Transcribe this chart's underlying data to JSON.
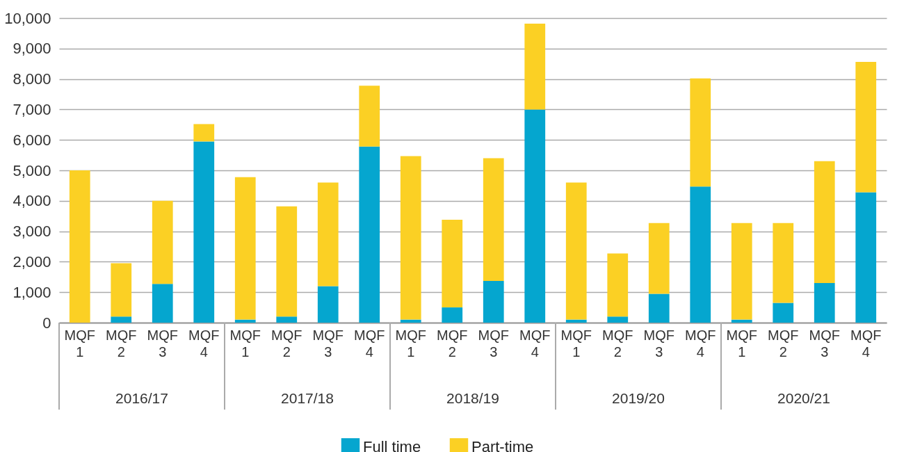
{
  "chart_data": {
    "type": "bar",
    "stacked": true,
    "categories": [
      "MQF 1",
      "MQF 2",
      "MQF 3",
      "MQF 4",
      "MQF 1",
      "MQF 2",
      "MQF 3",
      "MQF 4",
      "MQF 1",
      "MQF 2",
      "MQF 3",
      "MQF 4",
      "MQF 1",
      "MQF 2",
      "MQF 3",
      "MQF 4",
      "MQF 1",
      "MQF 2",
      "MQF 3",
      "MQF 4"
    ],
    "series": [
      {
        "name": "Full time",
        "color": "#05a6cf",
        "values": [
          0,
          200,
          1270,
          5950,
          100,
          200,
          1200,
          5780,
          100,
          500,
          1370,
          7000,
          100,
          200,
          950,
          4470,
          100,
          650,
          1300,
          4280
        ]
      },
      {
        "name": "Part-time",
        "color": "#fbd024",
        "values": [
          5000,
          1750,
          2730,
          570,
          4680,
          3620,
          3400,
          2000,
          5370,
          2880,
          4030,
          2820,
          4500,
          2070,
          2320,
          3550,
          3170,
          2620,
          4000,
          4280
        ]
      }
    ],
    "annotations": [
      "2016/17",
      "2017/18",
      "2018/19",
      "2019/20",
      "2020/21"
    ],
    "ylim": [
      0,
      10000
    ],
    "yticks": [
      0,
      {
        "value": 1000,
        "label": "1,000"
      },
      {
        "value": 2000,
        "label": "2,000"
      },
      {
        "value": 3000,
        "label": "3,000"
      },
      {
        "value": 4000,
        "label": "4,000"
      },
      {
        "value": 5000,
        "label": "5,000"
      },
      {
        "value": 6000,
        "label": "6,000"
      },
      {
        "value": 7000,
        "label": "7,000"
      },
      {
        "value": 8000,
        "label": "8,000"
      },
      {
        "value": 9000,
        "label": "9,000"
      },
      {
        "value": 10000,
        "label": "10,000"
      }
    ],
    "grid": "y",
    "legend": "bottom"
  }
}
